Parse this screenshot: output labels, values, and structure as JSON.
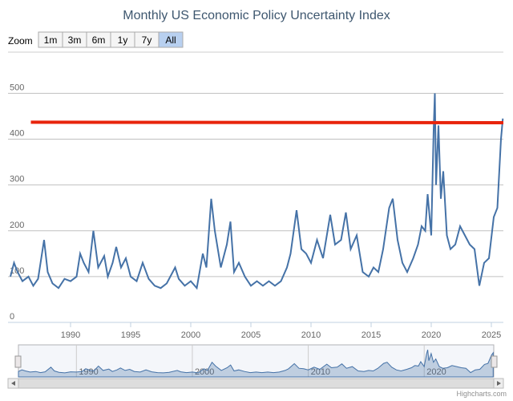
{
  "chart_data": {
    "type": "line",
    "title": "Monthly US Economic Policy Uncertainty Index",
    "range_selector": {
      "label": "Zoom",
      "buttons": [
        "1m",
        "3m",
        "6m",
        "1y",
        "7y",
        "All"
      ],
      "selected": 5
    },
    "x": [
      1985,
      1985.3,
      1985.6,
      1986,
      1986.5,
      1986.9,
      1987.3,
      1987.8,
      1988.1,
      1988.5,
      1989,
      1989.5,
      1990,
      1990.5,
      1990.8,
      1991.1,
      1991.5,
      1991.9,
      1992.3,
      1992.8,
      1993.1,
      1993.5,
      1993.8,
      1994.2,
      1994.6,
      1995,
      1995.5,
      1996,
      1996.5,
      1997,
      1997.5,
      1998,
      1998.7,
      1999,
      1999.5,
      2000,
      2000.5,
      2001,
      2001.3,
      2001.7,
      2002,
      2002.5,
      2003,
      2003.3,
      2003.6,
      2004,
      2004.5,
      2005,
      2005.5,
      2006,
      2006.5,
      2007,
      2007.5,
      2008,
      2008.3,
      2008.8,
      2009.2,
      2009.6,
      2010,
      2010.5,
      2011,
      2011.6,
      2012,
      2012.5,
      2012.9,
      2013.3,
      2013.8,
      2014.3,
      2014.8,
      2015.2,
      2015.6,
      2016,
      2016.5,
      2016.8,
      2017.2,
      2017.6,
      2018,
      2018.5,
      2018.9,
      2019.2,
      2019.5,
      2019.7,
      2020,
      2020.2,
      2020.3,
      2020.4,
      2020.6,
      2020.8,
      2021,
      2021.3,
      2021.6,
      2022,
      2022.4,
      2022.8,
      2023.2,
      2023.6,
      2024,
      2024.4,
      2024.8,
      2025.2,
      2025.5,
      2025.8,
      2025.95
    ],
    "series": [
      {
        "color": "#4572a7",
        "values": [
          100,
          130,
          110,
          90,
          100,
          80,
          95,
          180,
          110,
          85,
          75,
          95,
          90,
          100,
          150,
          130,
          110,
          200,
          120,
          145,
          100,
          130,
          165,
          120,
          140,
          100,
          90,
          130,
          95,
          80,
          75,
          85,
          120,
          95,
          80,
          90,
          75,
          150,
          120,
          270,
          200,
          120,
          170,
          220,
          110,
          130,
          100,
          80,
          90,
          80,
          90,
          80,
          90,
          120,
          150,
          245,
          160,
          150,
          130,
          180,
          140,
          235,
          170,
          180,
          240,
          160,
          190,
          110,
          100,
          120,
          110,
          160,
          250,
          270,
          180,
          130,
          110,
          140,
          170,
          210,
          200,
          280,
          190,
          420,
          500,
          300,
          430,
          270,
          330,
          190,
          160,
          170,
          210,
          190,
          170,
          160,
          80,
          130,
          140,
          230,
          250,
          400,
          445
        ]
      }
    ],
    "reference_line": {
      "color": "#e8240c",
      "x": [
        1986.7,
        2026
      ],
      "values": [
        437,
        436
      ]
    },
    "xlim": [
      1985,
      2026
    ],
    "xticks": [
      1990,
      1995,
      2000,
      2005,
      2010,
      2015,
      2020,
      2025
    ],
    "ylim": [
      0,
      590
    ],
    "yticks": [
      0,
      100,
      200,
      300,
      400,
      500
    ],
    "navigator_xticks": [
      1990,
      2000,
      2010,
      2020
    ],
    "grid": true,
    "credits": "Highcharts.com"
  }
}
